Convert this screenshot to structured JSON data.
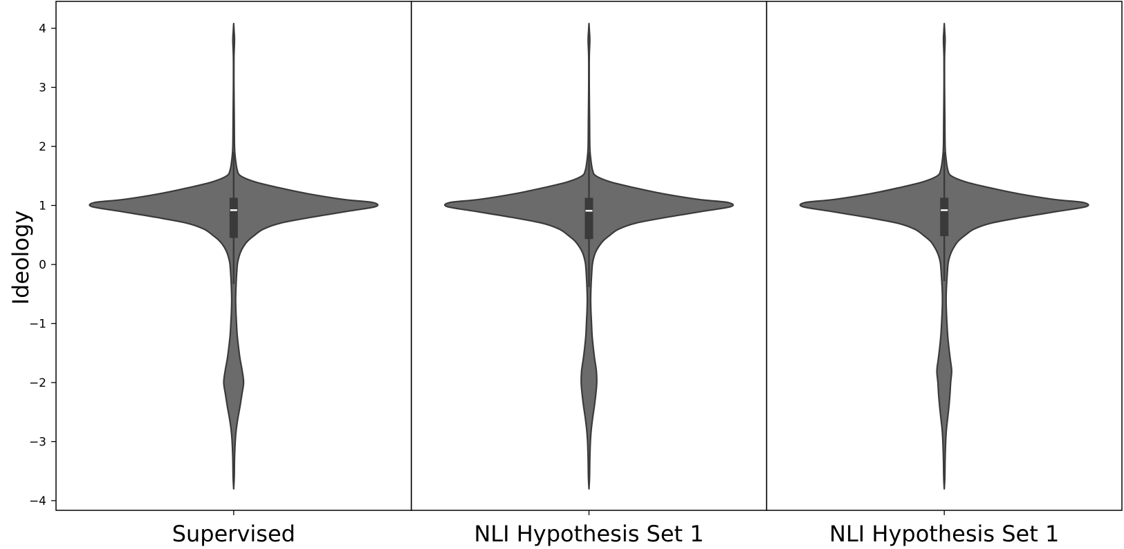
{
  "chart_data": {
    "type": "violin",
    "title": "",
    "xlabel": "",
    "ylabel": "Ideology",
    "ylim": [
      -4.17,
      4.45
    ],
    "yticks": [
      -4,
      -3,
      -2,
      -1,
      0,
      1,
      2,
      3,
      4
    ],
    "ytick_labels": [
      "−4",
      "−3",
      "−2",
      "−1",
      "0",
      "1",
      "2",
      "3",
      "4"
    ],
    "categories": [
      "Supervised",
      "NLI Hypothesis Set 1",
      "NLI Hypothesis Set 1"
    ],
    "grid": false,
    "legend": "none",
    "colors": {
      "violin_fill": "#6b6b6b",
      "violin_edge": "#3a3a3a",
      "box": "#3a3a3a",
      "median": "#ffffff",
      "frame": "#000000"
    },
    "violins": [
      {
        "name": "Supervised",
        "box": {
          "q1": 0.45,
          "median": 0.92,
          "q3": 1.13,
          "whisker_low": -0.33,
          "whisker_high": 1.9
        },
        "profile": [
          [
            4.08,
            0.0
          ],
          [
            3.95,
            0.003
          ],
          [
            3.8,
            0.006
          ],
          [
            3.5,
            0.002
          ],
          [
            3.0,
            0.002
          ],
          [
            2.5,
            0.004
          ],
          [
            2.0,
            0.006
          ],
          [
            1.8,
            0.012
          ],
          [
            1.6,
            0.025
          ],
          [
            1.5,
            0.05
          ],
          [
            1.4,
            0.15
          ],
          [
            1.3,
            0.32
          ],
          [
            1.2,
            0.52
          ],
          [
            1.1,
            0.78
          ],
          [
            1.05,
            0.98
          ],
          [
            0.98,
            1.0
          ],
          [
            0.9,
            0.8
          ],
          [
            0.8,
            0.55
          ],
          [
            0.7,
            0.33
          ],
          [
            0.6,
            0.21
          ],
          [
            0.5,
            0.15
          ],
          [
            0.4,
            0.1
          ],
          [
            0.3,
            0.068
          ],
          [
            0.2,
            0.047
          ],
          [
            0.1,
            0.034
          ],
          [
            0.0,
            0.026
          ],
          [
            -0.2,
            0.02
          ],
          [
            -0.4,
            0.016
          ],
          [
            -0.6,
            0.014
          ],
          [
            -0.8,
            0.016
          ],
          [
            -1.0,
            0.02
          ],
          [
            -1.2,
            0.025
          ],
          [
            -1.4,
            0.034
          ],
          [
            -1.6,
            0.045
          ],
          [
            -1.8,
            0.06
          ],
          [
            -2.0,
            0.07
          ],
          [
            -2.2,
            0.058
          ],
          [
            -2.4,
            0.045
          ],
          [
            -2.6,
            0.03
          ],
          [
            -2.8,
            0.018
          ],
          [
            -3.0,
            0.011
          ],
          [
            -3.3,
            0.006
          ],
          [
            -3.6,
            0.004
          ],
          [
            -3.8,
            0.0
          ]
        ]
      },
      {
        "name": "NLI Hypothesis Set 1",
        "box": {
          "q1": 0.43,
          "median": 0.91,
          "q3": 1.13,
          "whisker_low": -0.38,
          "whisker_high": 1.9
        },
        "profile": [
          [
            4.08,
            0.0
          ],
          [
            3.95,
            0.003
          ],
          [
            3.8,
            0.006
          ],
          [
            3.5,
            0.002
          ],
          [
            3.0,
            0.002
          ],
          [
            2.5,
            0.004
          ],
          [
            2.0,
            0.006
          ],
          [
            1.8,
            0.012
          ],
          [
            1.6,
            0.025
          ],
          [
            1.5,
            0.05
          ],
          [
            1.4,
            0.15
          ],
          [
            1.3,
            0.32
          ],
          [
            1.2,
            0.52
          ],
          [
            1.1,
            0.78
          ],
          [
            1.05,
            0.98
          ],
          [
            0.98,
            1.0
          ],
          [
            0.9,
            0.8
          ],
          [
            0.8,
            0.55
          ],
          [
            0.7,
            0.33
          ],
          [
            0.6,
            0.21
          ],
          [
            0.5,
            0.15
          ],
          [
            0.4,
            0.1
          ],
          [
            0.3,
            0.068
          ],
          [
            0.2,
            0.045
          ],
          [
            0.1,
            0.032
          ],
          [
            0.0,
            0.024
          ],
          [
            -0.2,
            0.018
          ],
          [
            -0.4,
            0.014
          ],
          [
            -0.6,
            0.012
          ],
          [
            -0.8,
            0.014
          ],
          [
            -1.0,
            0.018
          ],
          [
            -1.2,
            0.022
          ],
          [
            -1.4,
            0.03
          ],
          [
            -1.6,
            0.04
          ],
          [
            -1.8,
            0.052
          ],
          [
            -2.0,
            0.055
          ],
          [
            -2.2,
            0.048
          ],
          [
            -2.4,
            0.038
          ],
          [
            -2.6,
            0.026
          ],
          [
            -2.8,
            0.016
          ],
          [
            -3.0,
            0.01
          ],
          [
            -3.3,
            0.006
          ],
          [
            -3.6,
            0.004
          ],
          [
            -3.8,
            0.0
          ]
        ]
      },
      {
        "name": "NLI Hypothesis Set 1",
        "box": {
          "q1": 0.48,
          "median": 0.92,
          "q3": 1.13,
          "whisker_low": -0.28,
          "whisker_high": 1.9
        },
        "profile": [
          [
            4.08,
            0.0
          ],
          [
            3.95,
            0.003
          ],
          [
            3.8,
            0.006
          ],
          [
            3.5,
            0.002
          ],
          [
            3.0,
            0.002
          ],
          [
            2.5,
            0.004
          ],
          [
            2.0,
            0.006
          ],
          [
            1.8,
            0.012
          ],
          [
            1.6,
            0.025
          ],
          [
            1.5,
            0.05
          ],
          [
            1.4,
            0.15
          ],
          [
            1.3,
            0.32
          ],
          [
            1.2,
            0.52
          ],
          [
            1.1,
            0.78
          ],
          [
            1.05,
            0.98
          ],
          [
            0.98,
            1.0
          ],
          [
            0.9,
            0.8
          ],
          [
            0.8,
            0.55
          ],
          [
            0.7,
            0.33
          ],
          [
            0.6,
            0.21
          ],
          [
            0.5,
            0.15
          ],
          [
            0.4,
            0.1
          ],
          [
            0.3,
            0.07
          ],
          [
            0.2,
            0.048
          ],
          [
            0.1,
            0.034
          ],
          [
            0.0,
            0.026
          ],
          [
            -0.2,
            0.02
          ],
          [
            -0.4,
            0.015
          ],
          [
            -0.6,
            0.013
          ],
          [
            -0.8,
            0.015
          ],
          [
            -1.0,
            0.019
          ],
          [
            -1.2,
            0.024
          ],
          [
            -1.4,
            0.032
          ],
          [
            -1.6,
            0.042
          ],
          [
            -1.8,
            0.052
          ],
          [
            -2.0,
            0.045
          ],
          [
            -2.2,
            0.04
          ],
          [
            -2.4,
            0.033
          ],
          [
            -2.6,
            0.024
          ],
          [
            -2.8,
            0.015
          ],
          [
            -3.0,
            0.01
          ],
          [
            -3.3,
            0.006
          ],
          [
            -3.6,
            0.004
          ],
          [
            -3.8,
            0.0
          ]
        ]
      }
    ]
  }
}
